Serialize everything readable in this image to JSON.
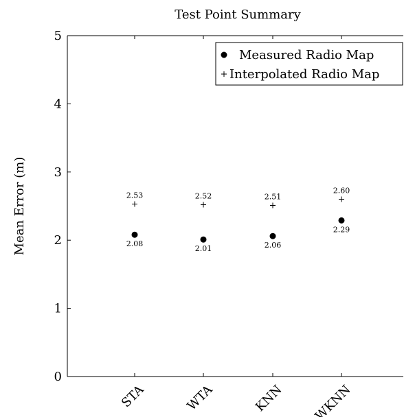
{
  "chart_data": {
    "type": "scatter",
    "title": "Test Point Summary",
    "xlabel": "",
    "ylabel": "Mean Error (m)",
    "categories": [
      "STA",
      "WTA",
      "KNN",
      "WKNN"
    ],
    "ylim": [
      0,
      5
    ],
    "yticks": [
      "0",
      "1",
      "2",
      "3",
      "4",
      "5"
    ],
    "series": [
      {
        "name": "Measured Radio Map",
        "marker": "dot",
        "values": [
          2.08,
          2.01,
          2.06,
          2.29
        ],
        "labels": [
          "2.08",
          "2.01",
          "2.06",
          "2.29"
        ],
        "label_position": "below"
      },
      {
        "name": "Interpolated Radio Map",
        "marker": "plus",
        "values": [
          2.53,
          2.52,
          2.51,
          2.6
        ],
        "labels": [
          "2.53",
          "2.52",
          "2.51",
          "2.60"
        ],
        "label_position": "above"
      }
    ],
    "legend": "top-right",
    "grid": false
  }
}
